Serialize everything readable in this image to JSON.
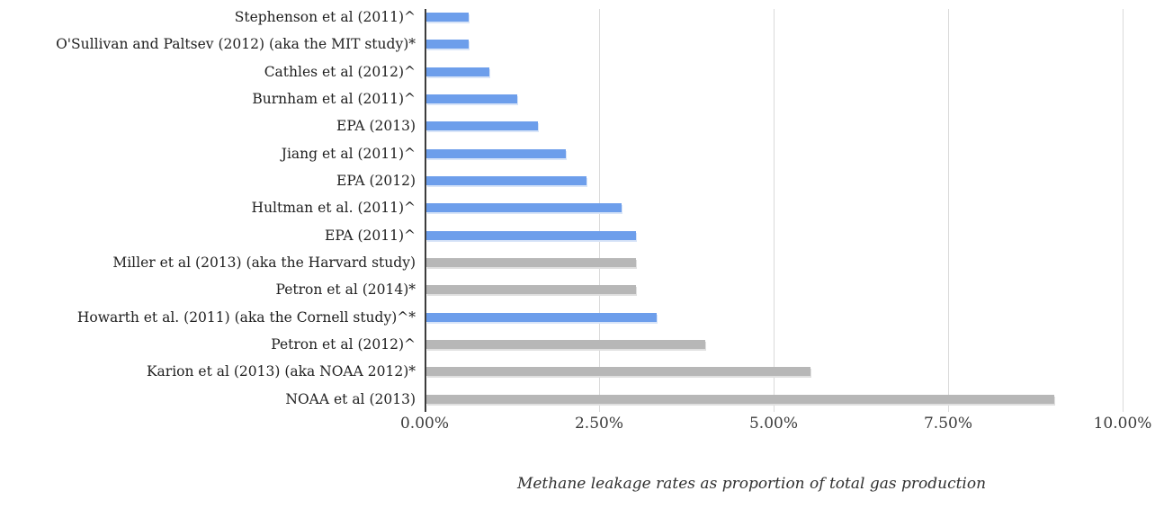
{
  "chart_data": {
    "type": "bar",
    "orientation": "horizontal",
    "title": "",
    "xlabel": "Methane leakage rates as proportion of total gas production",
    "ylabel": "",
    "xlim": [
      0,
      10
    ],
    "x_tick_labels": [
      "0.00%",
      "2.50%",
      "5.00%",
      "7.50%",
      "10.00%"
    ],
    "grid": "vertical",
    "legend": "none",
    "value_unit": "%",
    "categories": [
      "Stephenson et al (2011)^",
      "O'Sullivan and Paltsev (2012) (aka the MIT study)*",
      "Cathles et al (2012)^",
      "Burnham et al (2011)^",
      "EPA (2013)",
      "Jiang et al (2011)^",
      "EPA (2012)",
      "Hultman et al. (2011)^",
      "EPA (2011)^",
      "Miller et al (2013) (aka the Harvard study)",
      "Petron et al (2014)*",
      "Howarth et al. (2011) (aka the Cornell study)^*",
      "Petron et al (2012)^",
      "Karion et al (2013) (aka NOAA 2012)*",
      "NOAA et al (2013)"
    ],
    "values": [
      0.6,
      0.6,
      0.9,
      1.3,
      1.6,
      2.0,
      2.3,
      2.8,
      3.0,
      3.0,
      3.0,
      3.3,
      4.0,
      5.5,
      9.0
    ],
    "bar_colors": [
      "blue",
      "blue",
      "blue",
      "blue",
      "blue",
      "blue",
      "blue",
      "blue",
      "blue",
      "gray",
      "gray",
      "blue",
      "gray",
      "gray",
      "gray"
    ],
    "colors": {
      "blue": "#6d9eeb",
      "gray": "#b7b7b7",
      "gridline": "#dadada",
      "axis": "#3c3c3c"
    }
  }
}
